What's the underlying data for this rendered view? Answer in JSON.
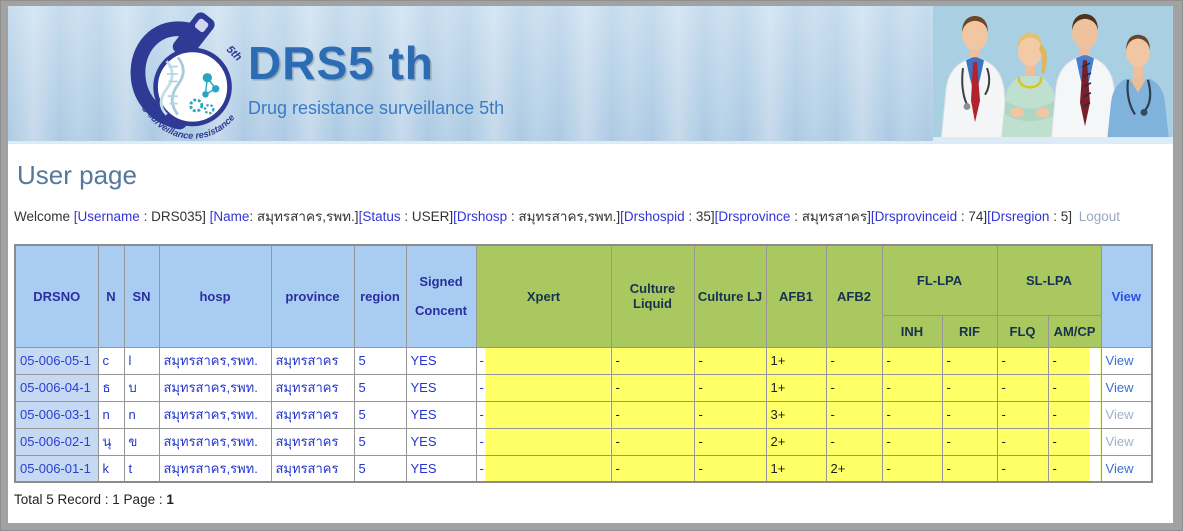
{
  "header": {
    "title": "DRS5 th",
    "subtitle": "Drug resistance surveillance 5th",
    "logo_arc_text": "Drug surveillance resistance",
    "logo_5th": "5th"
  },
  "page": {
    "title": "User page"
  },
  "welcome": {
    "prefix": "Welcome ",
    "fields": [
      {
        "key": "[Username",
        "rest": " : DRS035] "
      },
      {
        "key": "[Name",
        "rest": ": สมุทรสาคร,รพท.]"
      },
      {
        "key": "[Status",
        "rest": " : USER]"
      },
      {
        "key": "[Drshosp",
        "rest": " : สมุทรสาคร,รพท.]"
      },
      {
        "key": "[Drshospid",
        "rest": " : 35]"
      },
      {
        "key": "[Drsprovince",
        "rest": " : สมุทรสาคร]"
      },
      {
        "key": "[Drsprovinceid",
        "rest": " : 74]"
      },
      {
        "key": "[Drsregion",
        "rest": " : 5]"
      }
    ],
    "logout_label": "Logout"
  },
  "table": {
    "header": {
      "drsno": "DRSNO",
      "n": "N",
      "sn": "SN",
      "hosp": "hosp",
      "province": "province",
      "region": "region",
      "signed": "Signed Concent",
      "xpert": "Xpert",
      "culture_liquid": "Culture Liquid",
      "culture_lj": "Culture LJ",
      "afb1": "AFB1",
      "afb2": "AFB2",
      "fl_lpa": "FL-LPA",
      "sl_lpa": "SL-LPA",
      "inh": "INH",
      "rif": "RIF",
      "flq": "FLQ",
      "amcp": "AM/CP",
      "view": "View"
    },
    "rows": [
      {
        "drsno": "05-006-05-1",
        "n": "c",
        "sn": "l",
        "hosp": "สมุทรสาคร,รพท.",
        "province": "สมุทรสาคร",
        "region": "5",
        "signed": "YES",
        "xpert": "-",
        "culture_liquid": "-",
        "culture_lj": "-",
        "afb1": "1+",
        "afb2": "-",
        "inh": "-",
        "rif": "-",
        "flq": "-",
        "amcp": "-",
        "view": "View",
        "view_visited": false
      },
      {
        "drsno": "05-006-04-1",
        "n": "ธ",
        "sn": "บ",
        "hosp": "สมุทรสาคร,รพท.",
        "province": "สมุทรสาคร",
        "region": "5",
        "signed": "YES",
        "xpert": "-",
        "culture_liquid": "-",
        "culture_lj": "-",
        "afb1": "1+",
        "afb2": "-",
        "inh": "-",
        "rif": "-",
        "flq": "-",
        "amcp": "-",
        "view": "View",
        "view_visited": false
      },
      {
        "drsno": "05-006-03-1",
        "n": "n",
        "sn": "n",
        "hosp": "สมุทรสาคร,รพท.",
        "province": "สมุทรสาคร",
        "region": "5",
        "signed": "YES",
        "xpert": "-",
        "culture_liquid": "-",
        "culture_lj": "-",
        "afb1": "3+",
        "afb2": "-",
        "inh": "-",
        "rif": "-",
        "flq": "-",
        "amcp": "-",
        "view": "View",
        "view_visited": true
      },
      {
        "drsno": "05-006-02-1",
        "n": "นุ",
        "sn": "ข",
        "hosp": "สมุทรสาคร,รพท.",
        "province": "สมุทรสาคร",
        "region": "5",
        "signed": "YES",
        "xpert": "-",
        "culture_liquid": "-",
        "culture_lj": "-",
        "afb1": "2+",
        "afb2": "-",
        "inh": "-",
        "rif": "-",
        "flq": "-",
        "amcp": "-",
        "view": "View",
        "view_visited": true
      },
      {
        "drsno": "05-006-01-1",
        "n": "k",
        "sn": "t",
        "hosp": "สมุทรสาคร,รพท.",
        "province": "สมุทรสาคร",
        "region": "5",
        "signed": "YES",
        "xpert": "-",
        "culture_liquid": "-",
        "culture_lj": "-",
        "afb1": "1+",
        "afb2": "2+",
        "inh": "-",
        "rif": "-",
        "flq": "-",
        "amcp": "-",
        "view": "View",
        "view_visited": false
      }
    ]
  },
  "footer": {
    "total_label": "Total 5 Record : 1 Page : ",
    "page_number": "1"
  },
  "colors": {
    "banner_blue": "#b5d1e8",
    "title_blue": "#2b6cb5",
    "table_header_blue": "#a9cdf2",
    "table_header_green": "#a9c860",
    "highlight_yellow": "#ffff66",
    "drsno_column_bg": "#c6d9f2",
    "row_text_blue": "#2336cf",
    "view_link_blue": "#3a6fd0",
    "view_link_visited": "#9fb0ca",
    "logout_gray": "#9aa9bd",
    "logo_navy": "#2e3a94",
    "logo_teal": "#2aa5bd"
  }
}
